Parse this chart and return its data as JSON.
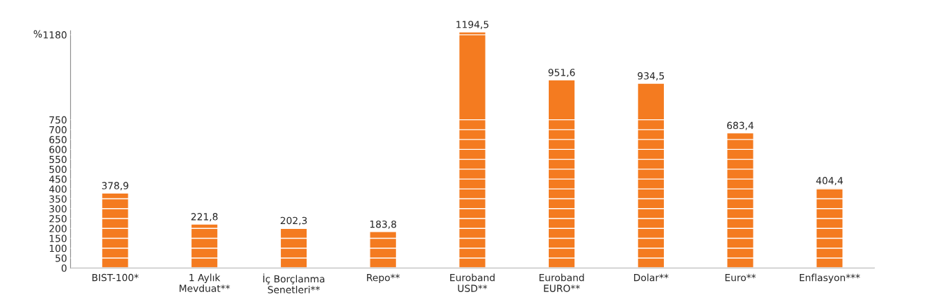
{
  "chart_data": {
    "type": "bar",
    "ylabel": "%",
    "categories": [
      "BIST-100*",
      "1 Aylık\nMevduat**",
      "İç Borçlanma\nSenetleri**",
      "Repo**",
      "Euroband\nUSD**",
      "Euroband\nEURO**",
      "Dolar**",
      "Euro**",
      "Enflasyon***"
    ],
    "values": [
      378.9,
      221.8,
      202.3,
      183.8,
      1194.5,
      951.6,
      934.5,
      683.4,
      404.4
    ],
    "value_labels": [
      "378,9",
      "221,8",
      "202,3",
      "183,8",
      "1194,5",
      "951,6",
      "934,5",
      "683,4",
      "404,4"
    ],
    "color": "#f47b20",
    "ylim": [
      0,
      1200
    ],
    "yticks": [
      0,
      50,
      100,
      150,
      200,
      250,
      300,
      350,
      400,
      450,
      500,
      550,
      600,
      650,
      700,
      750,
      1180
    ],
    "grid": "y"
  }
}
